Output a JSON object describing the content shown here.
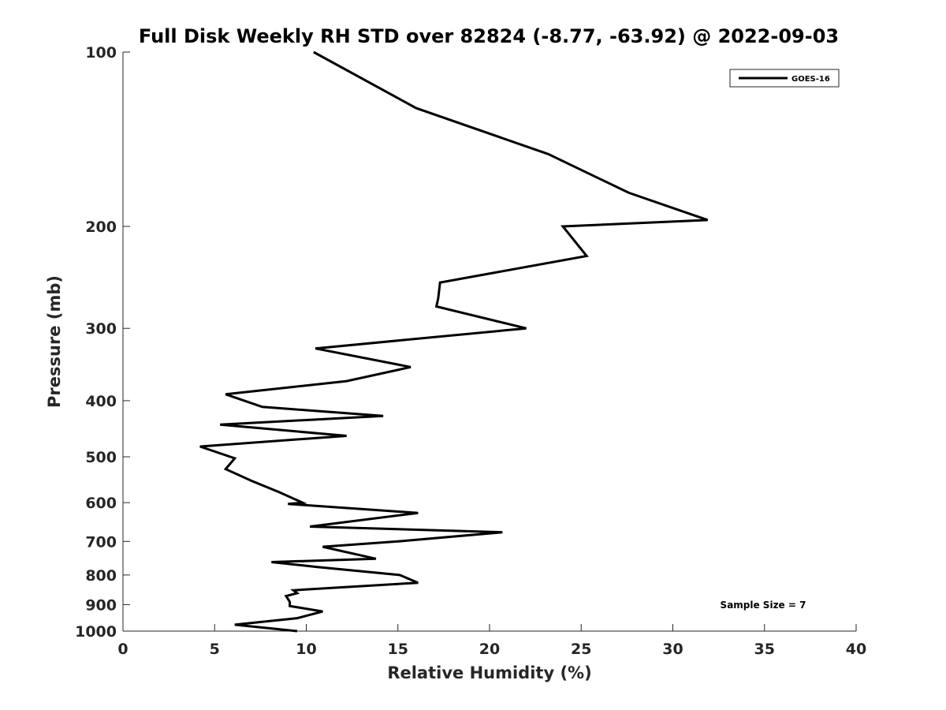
{
  "chart_data": {
    "type": "line",
    "title": "Full Disk Weekly RH STD over 82824 (-8.77, -63.92) @ 2022-09-03",
    "xlabel": "Relative Humidity (%)",
    "ylabel": "Pressure (mb)",
    "xlim": [
      0,
      40
    ],
    "ylim": [
      100,
      1000
    ],
    "y_scale": "log",
    "y_reversed": true,
    "x_ticks": [
      0,
      5,
      10,
      15,
      20,
      25,
      30,
      35,
      40
    ],
    "y_ticks": [
      100,
      200,
      300,
      400,
      500,
      600,
      700,
      800,
      900,
      1000
    ],
    "grid": false,
    "legend": {
      "position": "top-right"
    },
    "series": [
      {
        "name": "GOES-16",
        "color": "#000000",
        "points": [
          [
            10.4,
            100
          ],
          [
            16.0,
            125
          ],
          [
            23.2,
            150
          ],
          [
            27.6,
            175
          ],
          [
            31.9,
            195
          ],
          [
            24.0,
            200
          ],
          [
            25.3,
            225
          ],
          [
            17.3,
            250
          ],
          [
            17.2,
            266
          ],
          [
            17.1,
            275
          ],
          [
            22.0,
            300
          ],
          [
            10.5,
            325
          ],
          [
            15.7,
            350
          ],
          [
            12.2,
            370
          ],
          [
            5.6,
            390
          ],
          [
            7.6,
            410
          ],
          [
            14.2,
            425
          ],
          [
            5.3,
            440
          ],
          [
            12.2,
            460
          ],
          [
            4.2,
            480
          ],
          [
            6.1,
            503
          ],
          [
            5.6,
            525
          ],
          [
            7.0,
            550
          ],
          [
            8.5,
            575
          ],
          [
            9.8,
            600
          ],
          [
            9.0,
            603
          ],
          [
            16.1,
            625
          ],
          [
            10.2,
            660
          ],
          [
            20.7,
            675
          ],
          [
            15.0,
            700
          ],
          [
            10.9,
            715
          ],
          [
            13.8,
            750
          ],
          [
            8.1,
            760
          ],
          [
            10.6,
            775
          ],
          [
            15.1,
            800
          ],
          [
            16.1,
            825
          ],
          [
            9.3,
            850
          ],
          [
            9.5,
            860
          ],
          [
            8.9,
            870
          ],
          [
            9.1,
            890
          ],
          [
            9.1,
            905
          ],
          [
            10.9,
            925
          ],
          [
            9.5,
            950
          ],
          [
            6.1,
            975
          ],
          [
            9.5,
            1000
          ]
        ]
      }
    ],
    "annotations": [
      "Sample Size = 7"
    ]
  }
}
